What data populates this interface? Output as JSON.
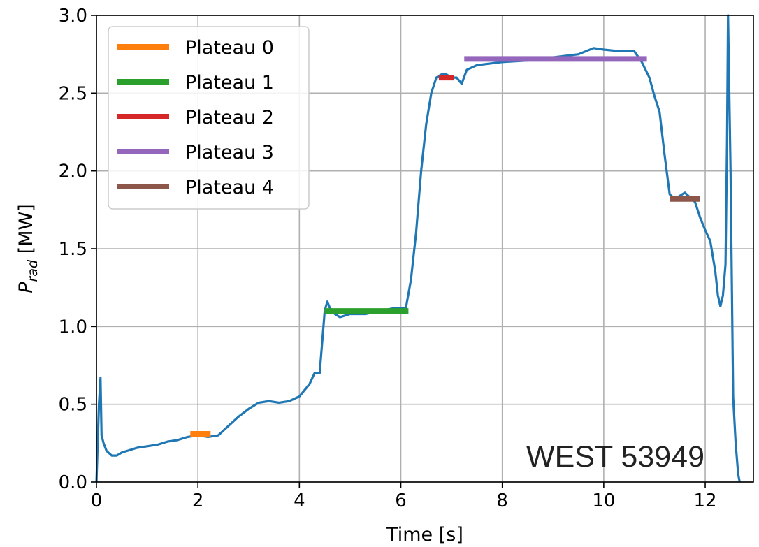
{
  "chart_data": {
    "type": "line",
    "title": "",
    "xlabel": "Time [s]",
    "ylabel_main": "P",
    "ylabel_sub": "rad",
    "ylabel_unit": " [MW]",
    "xlim": [
      0,
      12.95
    ],
    "ylim": [
      0,
      3.0
    ],
    "xticks": [
      0,
      2,
      4,
      6,
      8,
      10,
      12
    ],
    "xtick_labels": [
      "0",
      "2",
      "4",
      "6",
      "8",
      "10",
      "12"
    ],
    "yticks": [
      0,
      0.5,
      1.0,
      1.5,
      2.0,
      2.5,
      3.0
    ],
    "ytick_labels": [
      "0.0",
      "0.5",
      "1.0",
      "1.5",
      "2.0",
      "2.5",
      "3.0"
    ],
    "grid": true,
    "legend_position": "top-left",
    "annotation": "WEST 53949",
    "signal": {
      "color": "#1f77b4",
      "x": [
        0.0,
        0.05,
        0.08,
        0.1,
        0.14,
        0.2,
        0.3,
        0.4,
        0.5,
        0.6,
        0.8,
        1.0,
        1.2,
        1.4,
        1.6,
        1.8,
        2.0,
        2.2,
        2.4,
        2.6,
        2.8,
        3.0,
        3.2,
        3.4,
        3.6,
        3.8,
        4.0,
        4.2,
        4.3,
        4.4,
        4.45,
        4.5,
        4.55,
        4.6,
        4.7,
        4.8,
        5.0,
        5.3,
        5.6,
        5.9,
        6.1,
        6.2,
        6.3,
        6.4,
        6.5,
        6.6,
        6.7,
        6.8,
        6.9,
        7.0,
        7.1,
        7.2,
        7.3,
        7.5,
        8.0,
        8.5,
        9.0,
        9.5,
        9.8,
        10.0,
        10.3,
        10.6,
        10.75,
        10.9,
        11.0,
        11.1,
        11.2,
        11.3,
        11.4,
        11.6,
        11.8,
        11.9,
        12.0,
        12.1,
        12.2,
        12.25,
        12.3,
        12.35,
        12.4,
        12.43,
        12.45,
        12.5,
        12.55,
        12.6,
        12.65,
        12.68
      ],
      "y": [
        0.0,
        0.5,
        0.67,
        0.3,
        0.25,
        0.2,
        0.17,
        0.17,
        0.19,
        0.2,
        0.22,
        0.23,
        0.24,
        0.26,
        0.27,
        0.29,
        0.3,
        0.29,
        0.3,
        0.36,
        0.42,
        0.47,
        0.51,
        0.52,
        0.51,
        0.52,
        0.55,
        0.63,
        0.7,
        0.7,
        0.9,
        1.1,
        1.16,
        1.12,
        1.08,
        1.06,
        1.08,
        1.08,
        1.1,
        1.12,
        1.12,
        1.3,
        1.6,
        2.0,
        2.3,
        2.5,
        2.6,
        2.62,
        2.62,
        2.6,
        2.6,
        2.56,
        2.65,
        2.68,
        2.7,
        2.71,
        2.73,
        2.75,
        2.79,
        2.78,
        2.77,
        2.77,
        2.7,
        2.6,
        2.48,
        2.38,
        2.1,
        1.85,
        1.82,
        1.86,
        1.8,
        1.7,
        1.62,
        1.55,
        1.35,
        1.2,
        1.13,
        1.2,
        1.4,
        2.2,
        3.0,
        2.0,
        0.55,
        0.25,
        0.05,
        0.0
      ]
    },
    "plateaus": [
      {
        "name": "Plateau 0",
        "color": "#ff7f0e",
        "x_start": 1.85,
        "x_end": 2.25,
        "y": 0.31
      },
      {
        "name": "Plateau 1",
        "color": "#2ca02c",
        "x_start": 4.5,
        "x_end": 6.15,
        "y": 1.1
      },
      {
        "name": "Plateau 2",
        "color": "#d62728",
        "x_start": 6.75,
        "x_end": 7.05,
        "y": 2.6
      },
      {
        "name": "Plateau 3",
        "color": "#9467bd",
        "x_start": 7.25,
        "x_end": 10.85,
        "y": 2.72
      },
      {
        "name": "Plateau 4",
        "color": "#8c564b",
        "x_start": 11.3,
        "x_end": 11.9,
        "y": 1.82
      }
    ]
  }
}
